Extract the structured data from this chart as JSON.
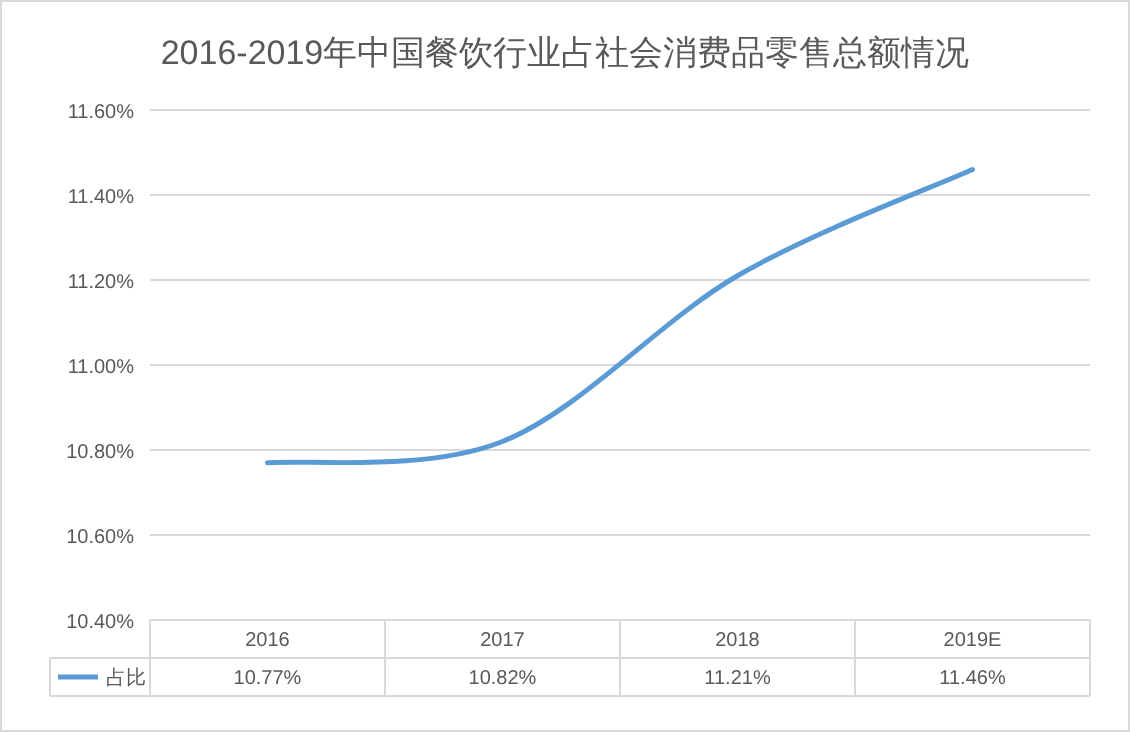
{
  "chart_data": {
    "type": "line",
    "title": "2016-2019年中国餐饮行业占社会消费品零售总额情况",
    "categories": [
      "2016",
      "2017",
      "2018",
      "2019E"
    ],
    "series": [
      {
        "name": "占比",
        "color": "#5b9bd5",
        "values": [
          10.77,
          10.82,
          11.21,
          11.46
        ],
        "value_labels": [
          "10.77%",
          "10.82%",
          "11.21%",
          "11.46%"
        ]
      }
    ],
    "ylim": [
      10.4,
      11.6
    ],
    "yticks": [
      {
        "value": 10.4,
        "label": "10.40%"
      },
      {
        "value": 10.6,
        "label": "10.60%"
      },
      {
        "value": 10.8,
        "label": "10.80%"
      },
      {
        "value": 11.0,
        "label": "11.00%"
      },
      {
        "value": 11.2,
        "label": "11.20%"
      },
      {
        "value": 11.4,
        "label": "11.40%"
      },
      {
        "value": 11.6,
        "label": "11.60%"
      }
    ],
    "grid": "y",
    "legend": "bottom",
    "marker": "none",
    "line_style": "solid"
  }
}
